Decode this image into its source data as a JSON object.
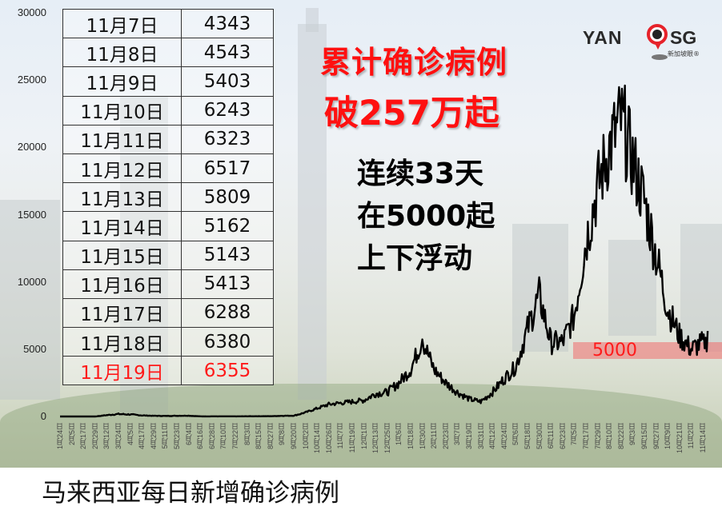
{
  "headline": {
    "line1": "累计确诊病例",
    "line2": "破257万起",
    "sub1": "连续33天",
    "sub2": "在5000起",
    "sub3": "上下浮动",
    "band_label": "5000"
  },
  "logo": {
    "left": "YAN",
    "right": "SG",
    "tagline": "新加坡眼®"
  },
  "caption": "马来西亚每日新增确诊病例",
  "table": {
    "rows": [
      {
        "date": "11月7日",
        "value": "4343"
      },
      {
        "date": "11月8日",
        "value": "4543"
      },
      {
        "date": "11月9日",
        "value": "5403"
      },
      {
        "date": "11月10日",
        "value": "6243"
      },
      {
        "date": "11月11日",
        "value": "6323"
      },
      {
        "date": "11月12日",
        "value": "6517"
      },
      {
        "date": "11月13日",
        "value": "5809"
      },
      {
        "date": "11月14日",
        "value": "5162"
      },
      {
        "date": "11月15日",
        "value": "5143"
      },
      {
        "date": "11月16日",
        "value": "5413"
      },
      {
        "date": "11月17日",
        "value": "6288"
      },
      {
        "date": "11月18日",
        "value": "6380"
      },
      {
        "date": "11月19日",
        "value": "6355"
      }
    ],
    "highlight_index": 12,
    "highlight_color": "#ff1a1a"
  },
  "colors": {
    "line": "#000000",
    "headline_red": "#ff1010",
    "band": "#f06e6e"
  },
  "chart_data": {
    "type": "line",
    "title": "马来西亚每日新增确诊病例",
    "xlabel": "",
    "ylabel": "",
    "ylim": [
      0,
      30000
    ],
    "yticks": [
      0,
      5000,
      10000,
      15000,
      20000,
      25000,
      30000
    ],
    "grid": false,
    "legend": "none",
    "reference_band": {
      "value": 5000,
      "label": "5000"
    },
    "x": [
      "1月24日",
      "2月5日",
      "2月17日",
      "2月29日",
      "3月12日",
      "3月24日",
      "4月5日",
      "4月17日",
      "4月29日",
      "5月11日",
      "5月23日",
      "6月4日",
      "6月16日",
      "6月28日",
      "7月10日",
      "7月22日",
      "8月3日",
      "8月15日",
      "8月27日",
      "9月8日",
      "9月20日",
      "10月2日",
      "10月14日",
      "10月26日",
      "11月7日",
      "11月19日",
      "12月1日",
      "12月13日",
      "12月25日",
      "1月6日",
      "1月18日",
      "1月30日",
      "2月11日",
      "2月23日",
      "3月7日",
      "3月19日",
      "3月31日",
      "4月12日",
      "4月24日",
      "5月6日",
      "5月18日",
      "5月30日",
      "6月11日",
      "6月23日",
      "7月5日",
      "7月17日",
      "7月29日",
      "8月10日",
      "8月22日",
      "9月3日",
      "9月15日",
      "9月27日",
      "10月9日",
      "10月21日",
      "11月2日",
      "11月14日"
    ],
    "series": [
      {
        "name": "每日新增确诊病例",
        "values": [
          0,
          0,
          0,
          0,
          100,
          180,
          150,
          80,
          50,
          40,
          50,
          60,
          10,
          10,
          10,
          10,
          15,
          20,
          20,
          50,
          60,
          300,
          600,
          900,
          1000,
          1100,
          1200,
          1700,
          1800,
          2500,
          3500,
          5700,
          3500,
          2500,
          1800,
          1300,
          1100,
          1800,
          2800,
          3700,
          6500,
          9000,
          5500,
          5500,
          7500,
          13000,
          17000,
          20000,
          22000,
          19000,
          16000,
          12000,
          8000,
          6000,
          5000,
          5500
        ],
        "end": {
          "label": "11月19日",
          "value": 6355
        },
        "peak": {
          "approx_date": "8月26日",
          "value": 24599
        }
      }
    ]
  }
}
